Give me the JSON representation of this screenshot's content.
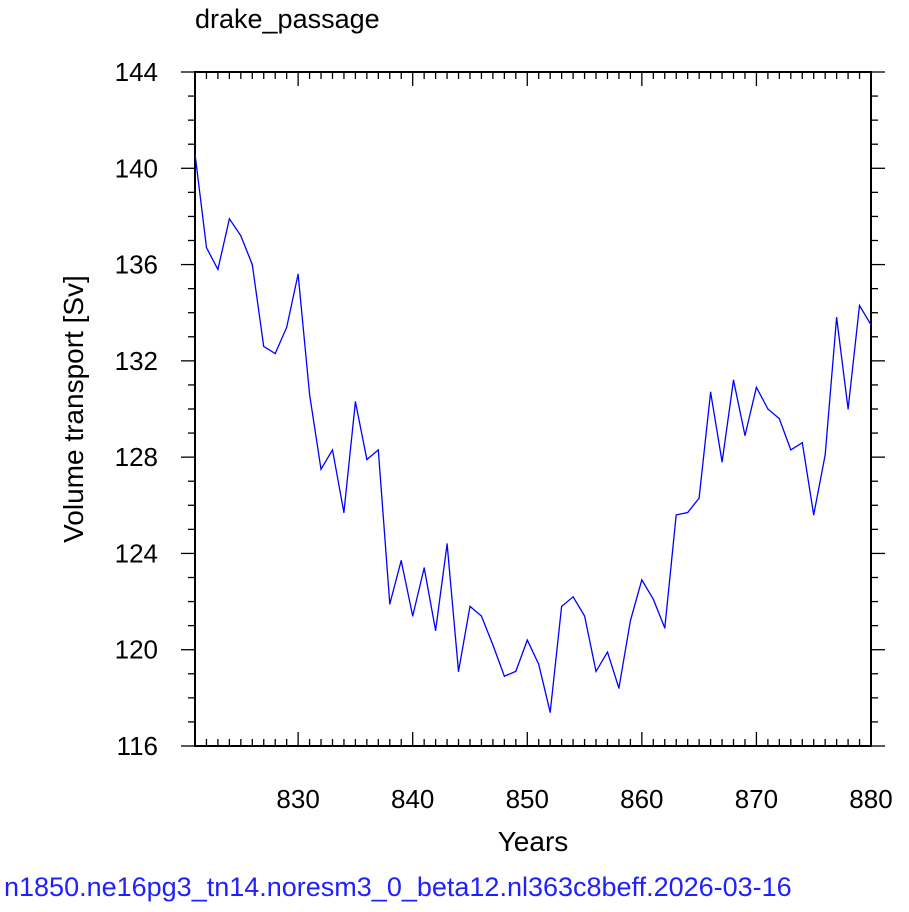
{
  "chart_data": {
    "type": "line",
    "title": "drake_passage",
    "xlabel": "Years",
    "ylabel": "Volume transport [Sv]",
    "xlim": [
      821,
      880
    ],
    "ylim": [
      116,
      144
    ],
    "x_ticks": [
      830,
      840,
      850,
      860,
      870,
      880
    ],
    "y_ticks": [
      116,
      120,
      124,
      128,
      132,
      136,
      140,
      144
    ],
    "grid": false,
    "series": [
      {
        "color": "#0000ff",
        "x": [
          821,
          822,
          823,
          824,
          825,
          826,
          827,
          828,
          829,
          830,
          831,
          832,
          833,
          834,
          835,
          836,
          837,
          838,
          839,
          840,
          841,
          842,
          843,
          844,
          845,
          846,
          847,
          848,
          849,
          850,
          851,
          852,
          853,
          854,
          855,
          856,
          857,
          858,
          859,
          860,
          861,
          862,
          863,
          864,
          865,
          866,
          867,
          868,
          869,
          870,
          871,
          872,
          873,
          874,
          875,
          876,
          877,
          878,
          879,
          880
        ],
        "values": [
          140.6,
          136.7,
          135.8,
          137.9,
          137.2,
          136.0,
          132.6,
          132.3,
          133.4,
          135.6,
          130.6,
          127.5,
          128.3,
          125.7,
          130.3,
          127.9,
          128.3,
          121.9,
          123.7,
          121.4,
          123.4,
          120.8,
          124.4,
          119.1,
          121.8,
          121.4,
          120.2,
          118.9,
          119.1,
          120.4,
          119.4,
          117.4,
          121.8,
          122.2,
          121.4,
          119.1,
          119.9,
          118.4,
          121.2,
          122.9,
          122.1,
          120.9,
          125.6,
          125.7,
          126.3,
          130.7,
          127.8,
          131.2,
          128.9,
          130.9,
          130.0,
          129.6,
          128.3,
          128.6,
          125.6,
          128.1,
          133.8,
          130.0,
          134.3,
          133.5
        ]
      }
    ]
  },
  "footer_text": "n1850.ne16pg3_tn14.noresm3_0_beta12.nl363c8beff.2026-03-16"
}
